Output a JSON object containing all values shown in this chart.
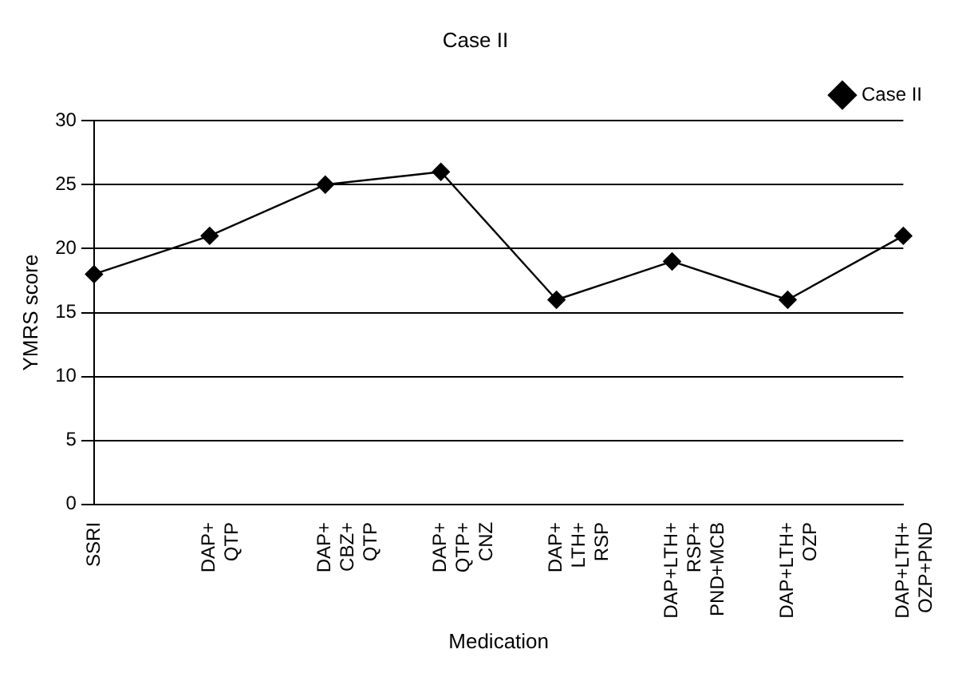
{
  "chart_data": {
    "type": "line",
    "title": "Case II",
    "xlabel": "Medication",
    "ylabel": "YMRS score",
    "categories": [
      "SSRI",
      "DAP+\nQTP",
      "DAP+\nCBZ+\nQTP",
      "DAP+\nQTP+\nCNZ",
      "DAP+\nLTH+\nRSP",
      "DAP+LTH+\nRSP+\nPND+MCB",
      "DAP+LTH+\nOZP",
      "DAP+LTH+\nOZP+PND"
    ],
    "series": [
      {
        "name": "Case II",
        "color": "#000000",
        "values": [
          18,
          21,
          25,
          26,
          16,
          19,
          16,
          21
        ]
      }
    ],
    "ylim": [
      0,
      30
    ],
    "yticks": [
      0,
      5,
      10,
      15,
      20,
      25,
      30
    ],
    "grid": "y",
    "legend": "top right",
    "marker": "diamond",
    "line_style": "solid"
  }
}
